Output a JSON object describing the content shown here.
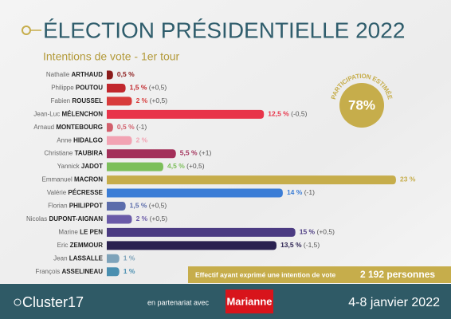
{
  "chart_data": {
    "type": "bar",
    "orientation": "horizontal",
    "title": "ÉLECTION PRÉSIDENTIELLE 2022",
    "subtitle": "Intentions de vote - 1er tour",
    "categories": [
      {
        "first": "Nathalie",
        "last": "ARTHAUD"
      },
      {
        "first": "Philippe",
        "last": "POUTOU"
      },
      {
        "first": "Fabien",
        "last": "ROUSSEL"
      },
      {
        "first": "Jean-Luc",
        "last": "MÉLENCHON"
      },
      {
        "first": "Arnaud",
        "last": "MONTEBOURG"
      },
      {
        "first": "Anne",
        "last": "HIDALGO"
      },
      {
        "first": "Christiane",
        "last": "TAUBIRA"
      },
      {
        "first": "Yannick",
        "last": "JADOT"
      },
      {
        "first": "Emmanuel",
        "last": "MACRON"
      },
      {
        "first": "Valérie",
        "last": "PÉCRESSE"
      },
      {
        "first": "Florian",
        "last": "PHILIPPOT"
      },
      {
        "first": "Nicolas",
        "last": "DUPONT-AIGNAN"
      },
      {
        "first": "Marine",
        "last": "LE PEN"
      },
      {
        "first": "Eric",
        "last": "ZEMMOUR"
      },
      {
        "first": "Jean",
        "last": "LASSALLE"
      },
      {
        "first": "François",
        "last": "ASSELINEAU"
      }
    ],
    "values": [
      0.5,
      1.5,
      2,
      12.5,
      0.5,
      2,
      5.5,
      4.5,
      23,
      14,
      1.5,
      2,
      15,
      13.5,
      1,
      1
    ],
    "value_labels": [
      "0,5 %",
      "1,5 %",
      "2 %",
      "12,5 %",
      "0,5 %",
      "2 %",
      "5,5 %",
      "4,5 %",
      "23 %",
      "14 %",
      "1,5 %",
      "2 %",
      "15 %",
      "13,5 %",
      "1 %",
      "1 %"
    ],
    "changes": [
      null,
      "(+0,5)",
      "(+0,5)",
      "(-0,5)",
      "(-1)",
      null,
      "(+1)",
      "(+0,5)",
      null,
      "(-1)",
      "(+0,5)",
      "(+0,5)",
      "(+0,5)",
      "(-1,5)",
      null,
      null
    ],
    "colors": [
      "#8c1c1c",
      "#c1272d",
      "#d83b3b",
      "#e8344a",
      "#d25f6c",
      "#f2a3b3",
      "#a3305a",
      "#7cbf5a",
      "#c6ad4b",
      "#3b7dd6",
      "#5b6cab",
      "#6a5aa8",
      "#4b3b82",
      "#2a2150",
      "#7ea3ba",
      "#4a8fb0"
    ],
    "participation": {
      "title": "PARTICIPATION ESTIMÉE",
      "value": 78,
      "value_label": "78%"
    },
    "sample": {
      "label": "Effectif ayant exprimé une intention de vote",
      "value_label": "2 192 personnes"
    },
    "footer": {
      "brand": "Cluster17",
      "partner_text": "en partenariat avec",
      "partner": "Marianne",
      "dates": "4-8 janvier 2022"
    }
  }
}
